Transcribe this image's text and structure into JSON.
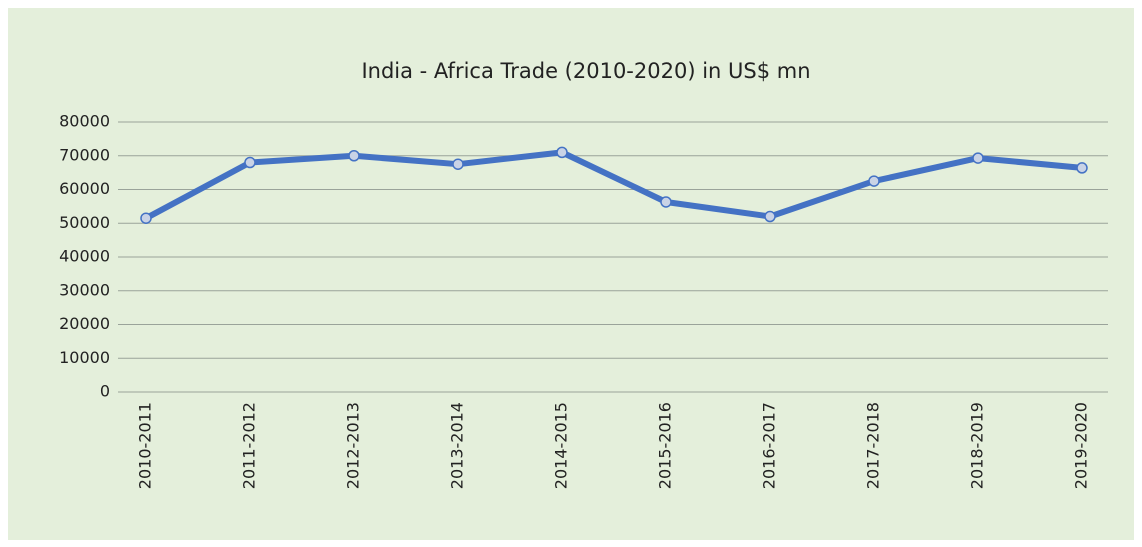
{
  "chart_data": {
    "type": "line",
    "title": "India - Africa Trade (2010-2020) in US$ mn",
    "categories": [
      "2010-2011",
      "2011-2012",
      "2012-2013",
      "2013-2014",
      "2014-2015",
      "2015-2016",
      "2016-2017",
      "2017-2018",
      "2018-2019",
      "2019-2020"
    ],
    "values": [
      51500,
      68000,
      70000,
      67500,
      71000,
      56300,
      52000,
      62500,
      69300,
      66400
    ],
    "color": "#4472c4",
    "ylim": [
      0,
      80000
    ],
    "yticks": [
      0,
      10000,
      20000,
      30000,
      40000,
      50000,
      60000,
      70000,
      80000
    ],
    "grid": true
  }
}
